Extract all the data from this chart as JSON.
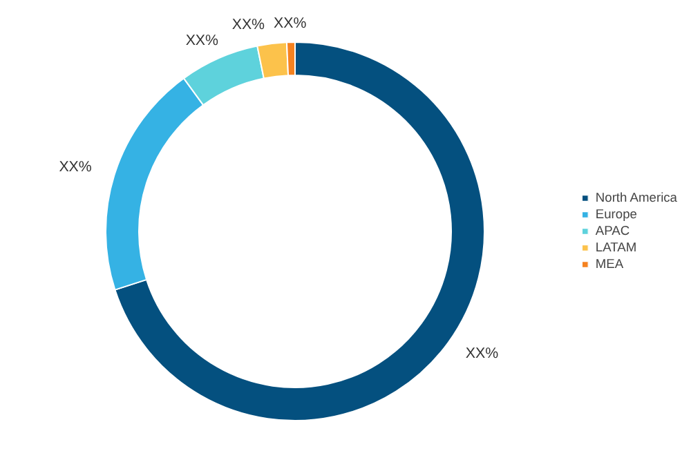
{
  "chart_data": {
    "type": "donut",
    "categories": [
      "North America",
      "Europe",
      "APAC",
      "LATAM",
      "MEA"
    ],
    "values": [
      70,
      20,
      6.8,
      2.5,
      0.7
    ],
    "colors": [
      "#04507f",
      "#35b2e4",
      "#5ed2dc",
      "#fcc24b",
      "#f58220"
    ],
    "value_labels": [
      "XX%",
      "XX%",
      "XX%",
      "XX%",
      "XX%"
    ],
    "legend": "right"
  }
}
